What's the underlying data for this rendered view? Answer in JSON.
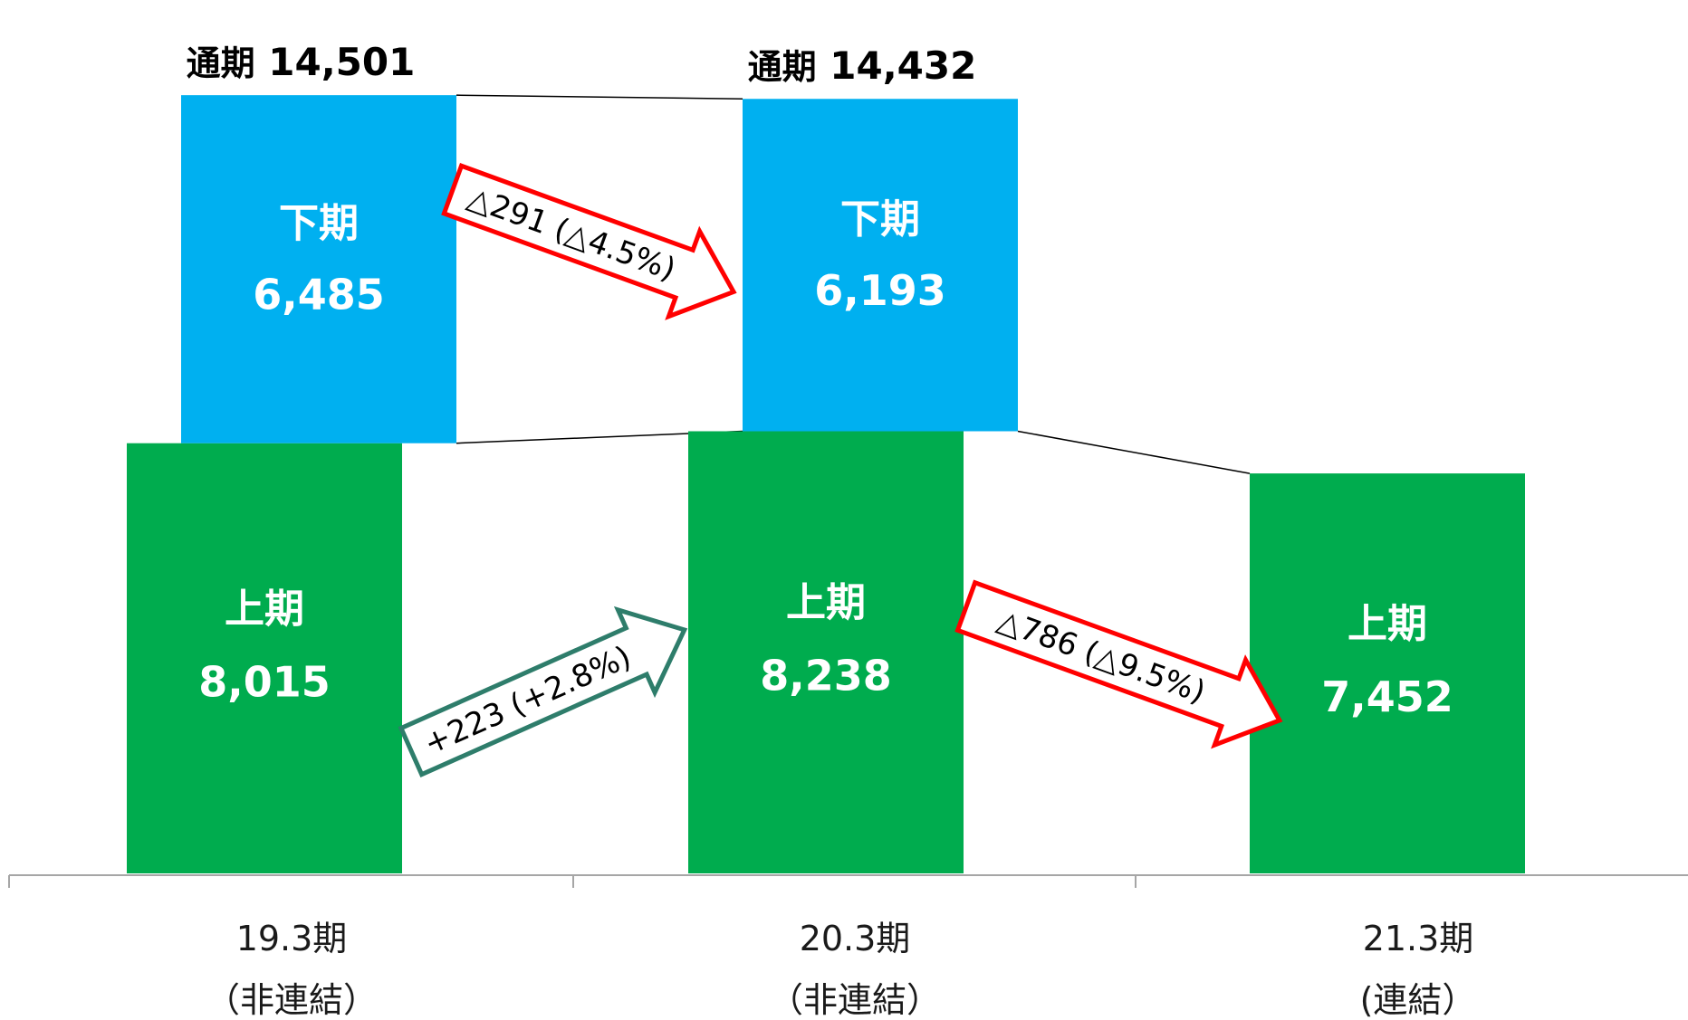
{
  "colors": {
    "first_half": "#00AC4E",
    "second_half": "#00B0F0",
    "decrease_arrow": "#FF0000",
    "increase_arrow": "#2E7D6B"
  },
  "chart_data": {
    "type": "bar",
    "stacked": true,
    "categories": [
      [
        "19.3期",
        "（非連結）"
      ],
      [
        "20.3期",
        "（非連結）"
      ],
      [
        "21.3期",
        "(連結）"
      ]
    ],
    "series": [
      {
        "name": "上期",
        "values": [
          8015,
          8238,
          7452
        ]
      },
      {
        "name": "下期",
        "values": [
          6485,
          6193,
          null
        ]
      }
    ],
    "totals": [
      {
        "label": "通期",
        "value": "14,501"
      },
      {
        "label": "通期",
        "value": "14,432"
      },
      null
    ],
    "bar_labels": {
      "first_half": [
        "上期",
        "上期",
        "上期"
      ],
      "first_half_values": [
        "8,015",
        "8,238",
        "7,452"
      ],
      "second_half": [
        "下期",
        "下期",
        null
      ],
      "second_half_values": [
        "6,485",
        "6,193",
        null
      ]
    },
    "changes": [
      {
        "series": "下期",
        "from": 0,
        "to": 1,
        "text": "△291 (△4.5%)",
        "direction": "down"
      },
      {
        "series": "上期",
        "from": 0,
        "to": 1,
        "text": "+223 (+2.8%)",
        "direction": "up"
      },
      {
        "series": "上期",
        "from": 1,
        "to": 2,
        "text": "△786 (△9.5%)",
        "direction": "down"
      }
    ],
    "ylim": [
      0,
      14800
    ],
    "grid": false,
    "legend": "none"
  }
}
